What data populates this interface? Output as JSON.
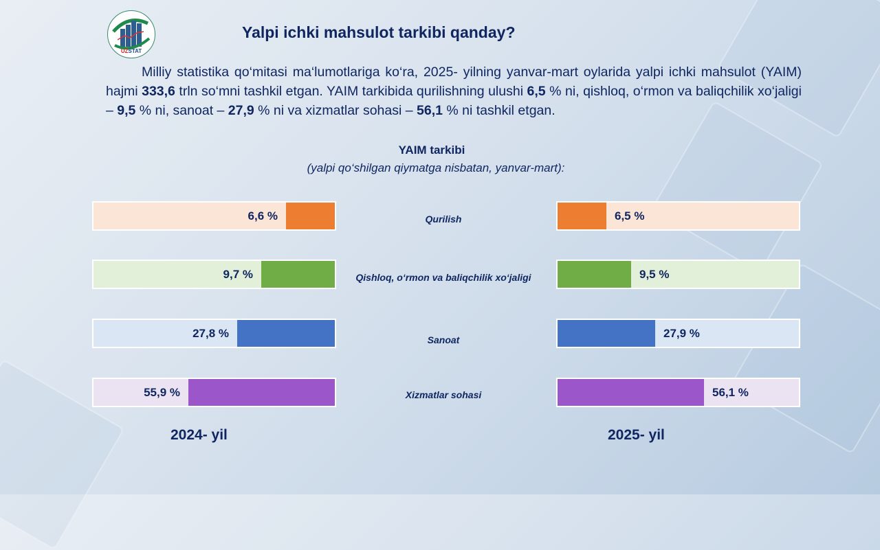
{
  "logo_text": "UZSTAT",
  "title": "Yalpi ichki mahsulot tarkibi qanday?",
  "paragraph": [
    {
      "t": "Milliy statistika qo‘mitasi ma‘lumotlariga ko‘ra, 2025- yilning yanvar-mart oylarida yalpi ichki mahsulot (YAIM) hajmi ",
      "b": false
    },
    {
      "t": "333,6",
      "b": true
    },
    {
      "t": "  trln so‘mni tashkil etgan. YAIM tarkibida qurilishning ulushi ",
      "b": false
    },
    {
      "t": "6,5",
      "b": true
    },
    {
      "t": " % ni, qishloq, o‘rmon va baliqchilik xo‘jaligi – ",
      "b": false
    },
    {
      "t": "9,5",
      "b": true
    },
    {
      "t": " % ni, sanoat – ",
      "b": false
    },
    {
      "t": "27,9",
      "b": true
    },
    {
      "t": " % ni va xizmatlar sohasi – ",
      "b": false
    },
    {
      "t": "56,1",
      "b": true
    },
    {
      "t": " % ni tashkil etgan.",
      "b": false
    }
  ],
  "chart_data": {
    "type": "bar",
    "title": "YAIM  tarkibi",
    "subtitle": "(yalpi qo‘shilgan qiymatga nisbatan, yanvar-mart):",
    "categories": [
      "Qurilish",
      "Qishloq,  o‘rmon va baliqchilik  xo‘jaligi",
      "Sanoat",
      "Xizmatlar  sohasi"
    ],
    "colors": [
      "#ed7d31",
      "#70ad47",
      "#4472c4",
      "#9b57c9"
    ],
    "light_colors": [
      "#fbe5d6",
      "#e2efd9",
      "#dae6f3",
      "#ebe3f2"
    ],
    "series": [
      {
        "name": "2024- yil",
        "values": [
          6.6,
          9.7,
          27.8,
          55.9
        ],
        "labels": [
          "6,6 %",
          "9,7 %",
          "27,8 %",
          "55,9 %"
        ]
      },
      {
        "name": "2025- yil",
        "values": [
          6.5,
          9.5,
          27.9,
          56.1
        ],
        "labels": [
          "6,5 %",
          "9,5 %",
          "27,9 %",
          "56,1 %"
        ]
      }
    ]
  }
}
